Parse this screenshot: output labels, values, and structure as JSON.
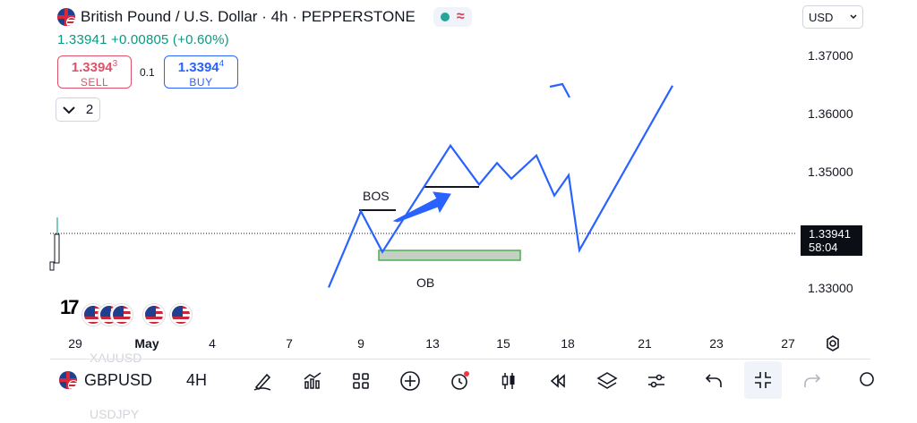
{
  "header": {
    "title": "British Pound / U.S. Dollar · 4h · PEPPERSTONE",
    "price_change": "1.33941 +0.00805 (+0.60%)",
    "status_icons": [
      "market-open-dot-icon",
      "delayed-wave-icon"
    ]
  },
  "trade": {
    "sell_price_main": "1.3394",
    "sell_price_sup": "3",
    "sell_label": "SELL",
    "spread": "0.1",
    "buy_price_main": "1.3394",
    "buy_price_sup": "4",
    "buy_label": "BUY"
  },
  "indicators_toggle": {
    "count": "2"
  },
  "currency": {
    "selected": "USD"
  },
  "last_price": {
    "price": "1.33941",
    "countdown": "58:04"
  },
  "colors": {
    "up": "#089981",
    "down": "#e0516a",
    "buy": "#2962ff",
    "arrow": "#2962ff",
    "ob_fill": "#c6cfc6",
    "ob_border": "#4caf50"
  },
  "chart_data": {
    "type": "line",
    "y_ticks": [
      "1.37000",
      "1.36000",
      "1.35000",
      "1.33000"
    ],
    "x_ticks": [
      "29",
      "May",
      "4",
      "7",
      "9",
      "13",
      "15",
      "18",
      "21",
      "23",
      "27"
    ],
    "annotations": [
      "BOS",
      "OB"
    ],
    "ylim": [
      1.326,
      1.372
    ],
    "path": [
      {
        "x": 8.1,
        "y": 1.3301
      },
      {
        "x": 9.0,
        "y": 1.3432
      },
      {
        "x": 9.6,
        "y": 1.3362
      },
      {
        "x": 11.5,
        "y": 1.3545
      },
      {
        "x": 12.3,
        "y": 1.3478
      },
      {
        "x": 12.8,
        "y": 1.3515
      },
      {
        "x": 13.2,
        "y": 1.3488
      },
      {
        "x": 13.9,
        "y": 1.3528
      },
      {
        "x": 14.4,
        "y": 1.3459
      },
      {
        "x": 14.8,
        "y": 1.3494
      },
      {
        "x": 15.1,
        "y": 1.3365
      },
      {
        "x": 17.7,
        "y": 1.3648
      }
    ]
  },
  "bottom_bar": {
    "symbol": "GBPUSD",
    "timeframe": "4H",
    "ghost_above": "XAUUSD",
    "ghost_below": "USDJPY",
    "tools": [
      "draw-pen-icon",
      "indicators-icon",
      "templates-icon",
      "add-icon",
      "alert-icon",
      "replay-candles-icon",
      "rewind-icon",
      "layers-icon",
      "settings-sliders-icon",
      "undo-icon",
      "fullscreen-exit-icon",
      "redo-icon"
    ]
  }
}
